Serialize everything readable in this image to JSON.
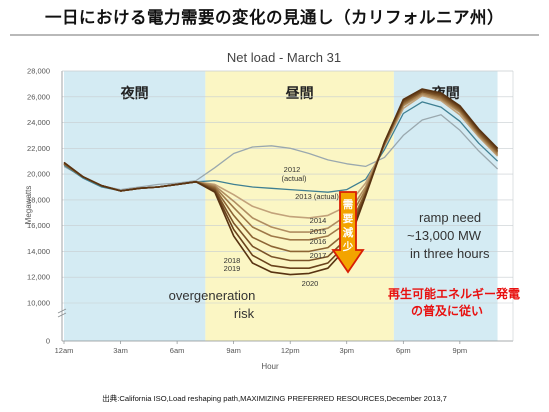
{
  "page": {
    "title": "一日における電力需要の変化の見通し（カリフォルニア州）",
    "source": "出典:California ISO,Load reshaping path,MAXIMIZING PREFERRED RESOURCES,December 2013,7"
  },
  "chart_data": {
    "type": "line",
    "title": "Net load - March 31",
    "xlabel": "Hour",
    "ylabel": "Megawatts",
    "ylim": [
      0,
      28000
    ],
    "y_axis_break": [
      0,
      10000
    ],
    "yticks": [
      "0",
      "10,000",
      "12,000",
      "14,000",
      "16,000",
      "18,000",
      "20,000",
      "22,000",
      "24,000",
      "26,000",
      "28,000"
    ],
    "xticks": [
      "12am",
      "3am",
      "6am",
      "9am",
      "12pm",
      "3pm",
      "6pm",
      "9pm"
    ],
    "x": [
      0,
      1,
      2,
      3,
      4,
      5,
      6,
      7,
      8,
      9,
      10,
      11,
      12,
      13,
      14,
      15,
      16,
      17,
      18,
      19,
      20,
      21,
      22,
      23
    ],
    "zones": [
      {
        "label": "夜間",
        "from": 0,
        "to": 7.5,
        "color": "#d4ebf3"
      },
      {
        "label": "昼間",
        "from": 7.5,
        "to": 17.5,
        "color": "#fbf6c4"
      },
      {
        "label": "夜間",
        "from": 17.5,
        "to": 23,
        "color": "#d4ebf3"
      }
    ],
    "series": [
      {
        "name": "2012 (actual)",
        "color": "#9aa8ae",
        "values": [
          20600,
          19800,
          19100,
          18800,
          19000,
          19200,
          19300,
          19500,
          20500,
          21600,
          22100,
          22200,
          22000,
          21600,
          21100,
          20800,
          20600,
          21300,
          23000,
          24200,
          24600,
          23400,
          21800,
          20400
        ]
      },
      {
        "name": "2013 (actual)",
        "color": "#3e7f92",
        "values": [
          20700,
          19700,
          19000,
          18700,
          18900,
          19000,
          19200,
          19400,
          19500,
          19200,
          19000,
          18900,
          18800,
          18700,
          18600,
          18800,
          19600,
          21900,
          24700,
          25600,
          25200,
          24100,
          22400,
          21000
        ]
      },
      {
        "name": "2014",
        "color": "#c2a27a",
        "values": [
          20800,
          19800,
          19100,
          18700,
          18900,
          19000,
          19200,
          19400,
          19200,
          18400,
          17500,
          17000,
          16700,
          16600,
          16800,
          17500,
          19300,
          22200,
          25100,
          26100,
          25700,
          24600,
          22900,
          21400
        ]
      },
      {
        "name": "2015",
        "color": "#b08d60",
        "values": [
          20800,
          19800,
          19100,
          18700,
          18900,
          19000,
          19200,
          19400,
          19100,
          17900,
          16600,
          15900,
          15500,
          15500,
          15800,
          16800,
          19000,
          22300,
          25300,
          26200,
          25800,
          24800,
          23000,
          21500
        ]
      },
      {
        "name": "2016",
        "color": "#9e7848",
        "values": [
          20800,
          19800,
          19100,
          18700,
          18900,
          19000,
          19200,
          19400,
          19000,
          17400,
          15900,
          15200,
          14900,
          14900,
          15200,
          16200,
          18800,
          22300,
          25400,
          26300,
          25900,
          24900,
          23100,
          21600
        ]
      },
      {
        "name": "2017",
        "color": "#8c6434",
        "values": [
          20800,
          19800,
          19100,
          18700,
          18900,
          19000,
          19200,
          19400,
          18900,
          16800,
          15100,
          14400,
          14000,
          14000,
          14300,
          15500,
          18600,
          22400,
          25500,
          26400,
          26000,
          25000,
          23200,
          21700
        ]
      },
      {
        "name": "2018",
        "color": "#7a5228",
        "values": [
          20900,
          19800,
          19100,
          18700,
          18900,
          19000,
          19200,
          19400,
          18800,
          16200,
          14400,
          13600,
          13300,
          13300,
          13600,
          15000,
          18500,
          22400,
          25600,
          26400,
          26100,
          25100,
          23300,
          21800
        ]
      },
      {
        "name": "2019",
        "color": "#69421c",
        "values": [
          20900,
          19800,
          19100,
          18700,
          18900,
          19000,
          19200,
          19400,
          18700,
          15700,
          13700,
          12900,
          12700,
          12700,
          13100,
          14600,
          18400,
          22500,
          25700,
          26500,
          26200,
          25200,
          23400,
          21900
        ]
      },
      {
        "name": "2020",
        "color": "#583312",
        "values": [
          20900,
          19800,
          19100,
          18700,
          18900,
          19000,
          19200,
          19400,
          18600,
          15200,
          13100,
          12400,
          12200,
          12300,
          12700,
          14300,
          18300,
          22500,
          25800,
          26600,
          26300,
          25300,
          23500,
          22000
        ]
      }
    ],
    "series_labels": {
      "2012": "2012",
      "2012_sub": "(actual)",
      "2013": "2013 (actual)",
      "2014": "2014",
      "2015": "2015",
      "2016": "2016",
      "2017": "2017",
      "2018": "2018",
      "2019": "2019",
      "2020": "2020"
    },
    "annotations": {
      "demand_decrease": [
        "需",
        "要",
        "減",
        "少"
      ],
      "ramp": [
        "ramp need",
        "~13,000 MW",
        "in three hours"
      ],
      "overgen": [
        "overgeneration",
        "risk"
      ],
      "renewables": [
        "再生可能エネルギー発電",
        "の普及に従い"
      ]
    },
    "grid": true,
    "legend": "none"
  }
}
